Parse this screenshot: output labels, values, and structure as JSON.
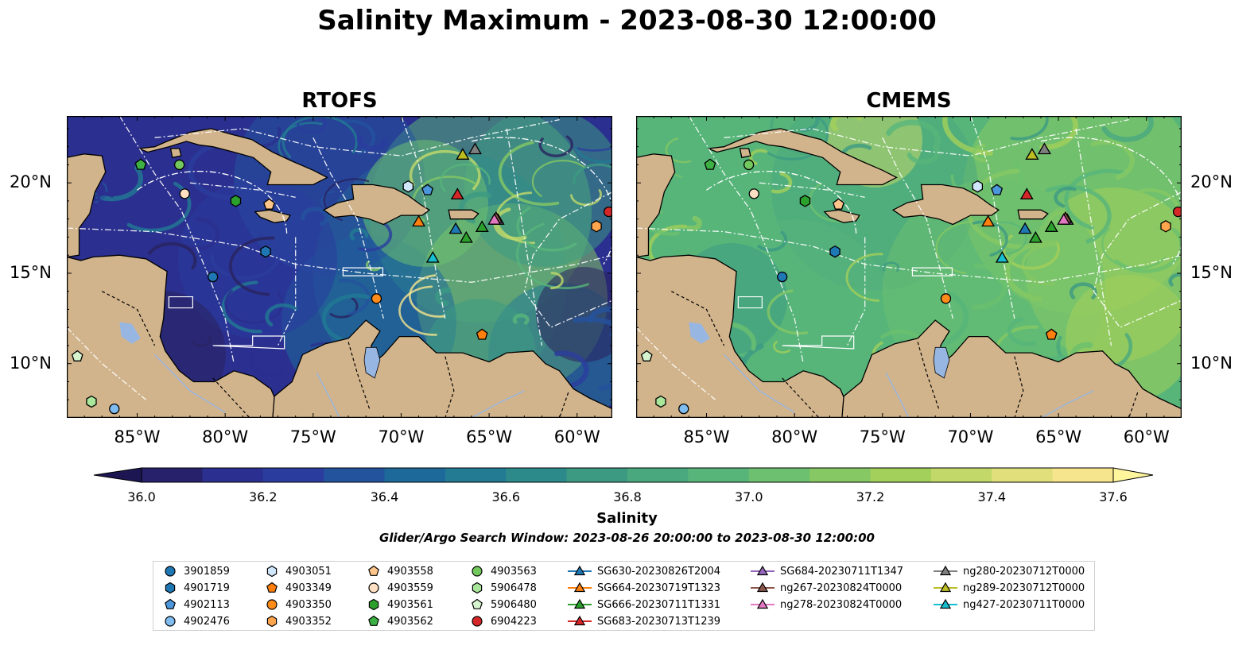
{
  "title": "Salinity Maximum - 2023-08-30 12:00:00",
  "panels": [
    {
      "title": "RTOFS"
    },
    {
      "title": "CMEMS"
    }
  ],
  "axes": {
    "x_ticks": [
      "85°W",
      "80°W",
      "75°W",
      "70°W",
      "65°W",
      "60°W"
    ],
    "y_ticks": [
      "20°N",
      "15°N",
      "10°N"
    ],
    "lon_range": [
      -89,
      -58
    ],
    "lat_range": [
      7,
      23.7
    ]
  },
  "colorbar": {
    "label": "Salinity",
    "ticks": [
      "36.0",
      "36.2",
      "36.4",
      "36.6",
      "36.8",
      "37.0",
      "37.2",
      "37.4",
      "37.6"
    ],
    "range": [
      36.0,
      37.6
    ],
    "colors": [
      "#27206a",
      "#2b2f8f",
      "#2a3d9e",
      "#24539e",
      "#1d6a9a",
      "#227a93",
      "#2c8a8a",
      "#3c9a83",
      "#4aa87e",
      "#57b57a",
      "#6cc06f",
      "#86c863",
      "#a2d05a",
      "#c2d96a",
      "#e0df7c",
      "#f6e58d"
    ]
  },
  "search_window": "Glider/Argo Search Window: 2023-08-26 20:00:00 to 2023-08-30 12:00:00",
  "colors": {
    "land": "#d2b48c",
    "lake": "#97b6e1",
    "ocean_deep": "#29235f"
  },
  "legend": [
    [
      "3901859",
      "4903051",
      "4903558",
      "4903563",
      "SG630-20230826T2004",
      "SG684-20230711T1347",
      "ng280-20230712T0000"
    ],
    [
      "4901719",
      "4903349",
      "4903559",
      "5906478",
      "SG664-20230719T1323",
      "ng267-20230824T0000",
      "ng289-20230712T0000"
    ],
    [
      "4902113",
      "4903350",
      "4903561",
      "5906480",
      "SG666-20230711T1331",
      "ng278-20230824T0000",
      "ng427-20230711T0000"
    ],
    [
      "4902476",
      "4903352",
      "4903562",
      "6904223",
      "SG683-20230713T1239"
    ]
  ],
  "markers": [
    {
      "id": "3901859",
      "shape": "circle",
      "color": "#1f77b4",
      "lon": -80.7,
      "lat": 14.8
    },
    {
      "id": "4901719",
      "shape": "hexagon",
      "color": "#1f77b4",
      "lon": -77.7,
      "lat": 16.2
    },
    {
      "id": "4902113",
      "shape": "pentagon",
      "color": "#4c96dc",
      "lon": -68.5,
      "lat": 19.6
    },
    {
      "id": "4902476",
      "shape": "circle",
      "color": "#7fbcf0",
      "lon": -86.3,
      "lat": 7.5
    },
    {
      "id": "4903051",
      "shape": "hexagon",
      "color": "#cfe6fb",
      "lon": -69.6,
      "lat": 19.8
    },
    {
      "id": "4903349",
      "shape": "pentagon",
      "color": "#ff7f0e",
      "lon": -65.4,
      "lat": 11.6
    },
    {
      "id": "4903350",
      "shape": "circle",
      "color": "#ff8c1a",
      "lon": -71.4,
      "lat": 13.6
    },
    {
      "id": "4903352",
      "shape": "hexagon",
      "color": "#ffa64d",
      "lon": -58.9,
      "lat": 17.6
    },
    {
      "id": "4903558",
      "shape": "pentagon",
      "color": "#ffc58a",
      "lon": -77.5,
      "lat": 18.8
    },
    {
      "id": "4903559",
      "shape": "circle",
      "color": "#ffe0c2",
      "lon": -82.3,
      "lat": 19.4
    },
    {
      "id": "4903561",
      "shape": "hexagon",
      "color": "#2ca02c",
      "lon": -79.4,
      "lat": 19.0
    },
    {
      "id": "4903562",
      "shape": "pentagon",
      "color": "#3cb043",
      "lon": -84.8,
      "lat": 21.0
    },
    {
      "id": "4903563",
      "shape": "circle",
      "color": "#73c95e",
      "lon": -82.6,
      "lat": 21.0
    },
    {
      "id": "5906478",
      "shape": "hexagon",
      "color": "#a9e89a",
      "lon": -87.6,
      "lat": 7.9
    },
    {
      "id": "5906480",
      "shape": "pentagon",
      "color": "#d6f5cf",
      "lon": -88.4,
      "lat": 10.4
    },
    {
      "id": "6904223",
      "shape": "circle",
      "color": "#d62728",
      "lon": -58.2,
      "lat": 18.4
    },
    {
      "id": "SG630-20230826T2004",
      "shape": "triangle",
      "color": "#1f77b4",
      "lon": -66.9,
      "lat": 17.4
    },
    {
      "id": "SG664-20230719T1323",
      "shape": "triangle",
      "color": "#ff7f0e",
      "lon": -69.0,
      "lat": 17.8
    },
    {
      "id": "SG666-20230711T1331",
      "shape": "triangle",
      "color": "#2ca02c",
      "lon": -66.3,
      "lat": 16.9
    },
    {
      "id": "SG666b",
      "shape": "triangle",
      "color": "#2ca02c",
      "lon": -65.4,
      "lat": 17.5
    },
    {
      "id": "SG666c",
      "shape": "triangle",
      "color": "#2ca02c",
      "lon": -66.5,
      "lat": 21.5
    },
    {
      "id": "SG683-20230713T1239",
      "shape": "triangle",
      "color": "#d62728",
      "lon": -66.8,
      "lat": 19.3
    },
    {
      "id": "SG684-20230711T1347",
      "shape": "triangle",
      "color": "#9467bd",
      "lon": -64.5,
      "lat": 17.9
    },
    {
      "id": "ng267-20230824T0000",
      "shape": "triangle",
      "color": "#8c564b",
      "lon": -64.6,
      "lat": 18.0
    },
    {
      "id": "ng278-20230824T0000",
      "shape": "triangle",
      "color": "#e377c2",
      "lon": -64.7,
      "lat": 17.9
    },
    {
      "id": "ng280-20230712T0000",
      "shape": "triangle",
      "color": "#7f7f7f",
      "lon": -65.8,
      "lat": 21.8
    },
    {
      "id": "ng289-20230712T0000",
      "shape": "triangle",
      "color": "#bcbd22",
      "lon": -66.5,
      "lat": 21.5
    },
    {
      "id": "ng427-20230711T0000",
      "shape": "triangle",
      "color": "#17becf",
      "lon": -68.2,
      "lat": 15.8
    }
  ],
  "legend_styles": {
    "3901859": [
      "circle",
      "#1f77b4"
    ],
    "4901719": [
      "hexagon",
      "#1f77b4"
    ],
    "4902113": [
      "pentagon",
      "#4c96dc"
    ],
    "4902476": [
      "circle",
      "#7fbcf0"
    ],
    "4903051": [
      "hexagon",
      "#cfe6fb"
    ],
    "4903349": [
      "pentagon",
      "#ff7f0e"
    ],
    "4903350": [
      "circle",
      "#ff8c1a"
    ],
    "4903352": [
      "hexagon",
      "#ffa64d"
    ],
    "4903558": [
      "pentagon",
      "#ffc58a"
    ],
    "4903559": [
      "circle",
      "#ffe0c2"
    ],
    "4903561": [
      "hexagon",
      "#2ca02c"
    ],
    "4903562": [
      "pentagon",
      "#3cb043"
    ],
    "4903563": [
      "circle",
      "#73c95e"
    ],
    "5906478": [
      "hexagon",
      "#a9e89a"
    ],
    "5906480": [
      "pentagon",
      "#d6f5cf"
    ],
    "6904223": [
      "circle",
      "#d62728"
    ],
    "SG630-20230826T2004": [
      "triangle",
      "#1f77b4"
    ],
    "SG664-20230719T1323": [
      "triangle",
      "#ff7f0e"
    ],
    "SG666-20230711T1331": [
      "triangle",
      "#2ca02c"
    ],
    "SG683-20230713T1239": [
      "triangle",
      "#d62728"
    ],
    "SG684-20230711T1347": [
      "triangle",
      "#9467bd"
    ],
    "ng267-20230824T0000": [
      "triangle",
      "#8c564b"
    ],
    "ng278-20230824T0000": [
      "triangle",
      "#e377c2"
    ],
    "ng280-20230712T0000": [
      "triangle",
      "#7f7f7f"
    ],
    "ng289-20230712T0000": [
      "triangle",
      "#bcbd22"
    ],
    "ng427-20230711T0000": [
      "triangle",
      "#17becf"
    ]
  }
}
